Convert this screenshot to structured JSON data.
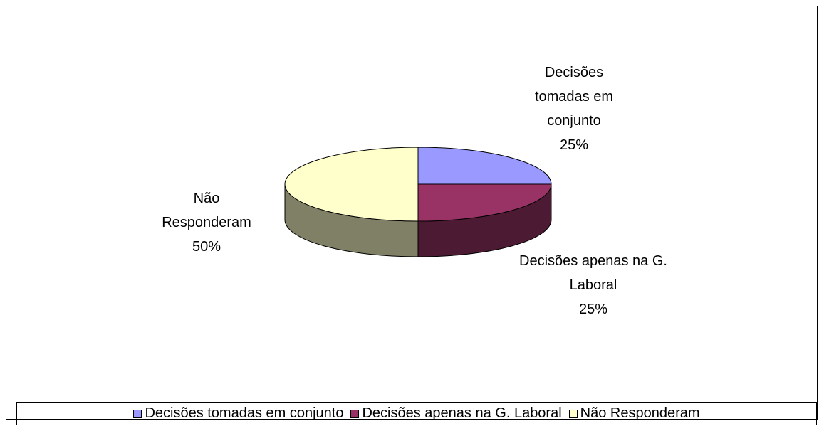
{
  "chart_data": {
    "type": "pie3d",
    "categories": [
      "Decisões tomadas em conjunto",
      "Decisões apenas na G. Laboral",
      "Não Responderam"
    ],
    "values": [
      25,
      25,
      50
    ],
    "value_labels": [
      "25%",
      "25%",
      "50%"
    ],
    "colors": [
      "#9999ff",
      "#993366",
      "#ffffcc"
    ],
    "legend": "bottom"
  }
}
